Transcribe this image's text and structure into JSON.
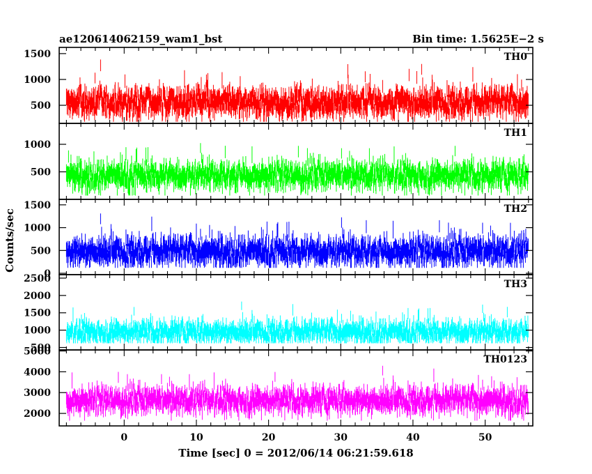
{
  "header": {
    "title": "ae120614062159_wam1_bst",
    "bin_time": "Bin time: 1.5625E−2 s"
  },
  "chart_data": {
    "type": "line",
    "title": "ae120614062159_wam1_bst",
    "xlabel": "Time [sec] 0 = 2012/06/14 06:21:59.618",
    "ylabel": "Counts/sec",
    "xlim": [
      -9,
      56.6
    ],
    "x_ticks": [
      0,
      10,
      20,
      30,
      40,
      50
    ],
    "x_tick_labels": [
      "0",
      "10",
      "20",
      "30",
      "40",
      "50"
    ],
    "x_range_data": [
      -8,
      56
    ],
    "panels": [
      {
        "name": "TH0",
        "color": "#ff0000",
        "ylim": [
          150,
          1620
        ],
        "yticks": [
          500,
          1000,
          1500
        ],
        "ytick_labels": [
          "500",
          "1000",
          "1500"
        ],
        "mean": 700,
        "spread": 170,
        "floor": 180
      },
      {
        "name": "TH1",
        "color": "#00ff00",
        "ylim": [
          0,
          1380
        ],
        "yticks": [
          500,
          1000
        ],
        "ytick_labels": [
          "500",
          "1000"
        ],
        "mean": 560,
        "spread": 150,
        "floor": 70
      },
      {
        "name": "TH2",
        "color": "#0000ff",
        "ylim": [
          -30,
          1620
        ],
        "yticks": [
          0,
          500,
          1000,
          1500
        ],
        "ytick_labels": [
          "0",
          "500",
          "1000",
          "1500"
        ],
        "mean": 640,
        "spread": 190,
        "floor": 120
      },
      {
        "name": "TH3",
        "color": "#00ffff",
        "ylim": [
          430,
          2600
        ],
        "yticks": [
          500,
          1000,
          1500,
          2000,
          2500
        ],
        "ytick_labels": [
          "500",
          "1000",
          "1500",
          "2000",
          "2500"
        ],
        "mean": 1120,
        "spread": 200,
        "floor": 620
      },
      {
        "name": "TH0123",
        "color": "#ff00ff",
        "ylim": [
          1400,
          5050
        ],
        "yticks": [
          2000,
          3000,
          4000,
          5000
        ],
        "ytick_labels": [
          "2000",
          "3000",
          "4000",
          "5000"
        ],
        "mean": 2950,
        "spread": 380,
        "floor": 1650
      }
    ]
  }
}
